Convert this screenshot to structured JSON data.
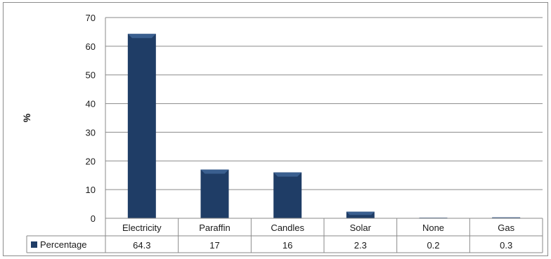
{
  "chart_data": {
    "type": "bar",
    "categories": [
      "Electricity",
      "Paraffin",
      "Candles",
      "Solar",
      "None",
      "Gas"
    ],
    "series": [
      {
        "name": "Percentage",
        "values": [
          64.3,
          17,
          16,
          2.3,
          0.2,
          0.3
        ],
        "color": "#1f3d66"
      }
    ],
    "table_values": [
      "64.3",
      "17",
      "16",
      "2.3",
      "0.2",
      "0.3"
    ],
    "ylabel": "%",
    "ylim": [
      0,
      70
    ],
    "yticks": [
      0,
      10,
      20,
      30,
      40,
      50,
      60,
      70
    ],
    "grid": true,
    "data_table": true,
    "legend": "data-table-left"
  }
}
